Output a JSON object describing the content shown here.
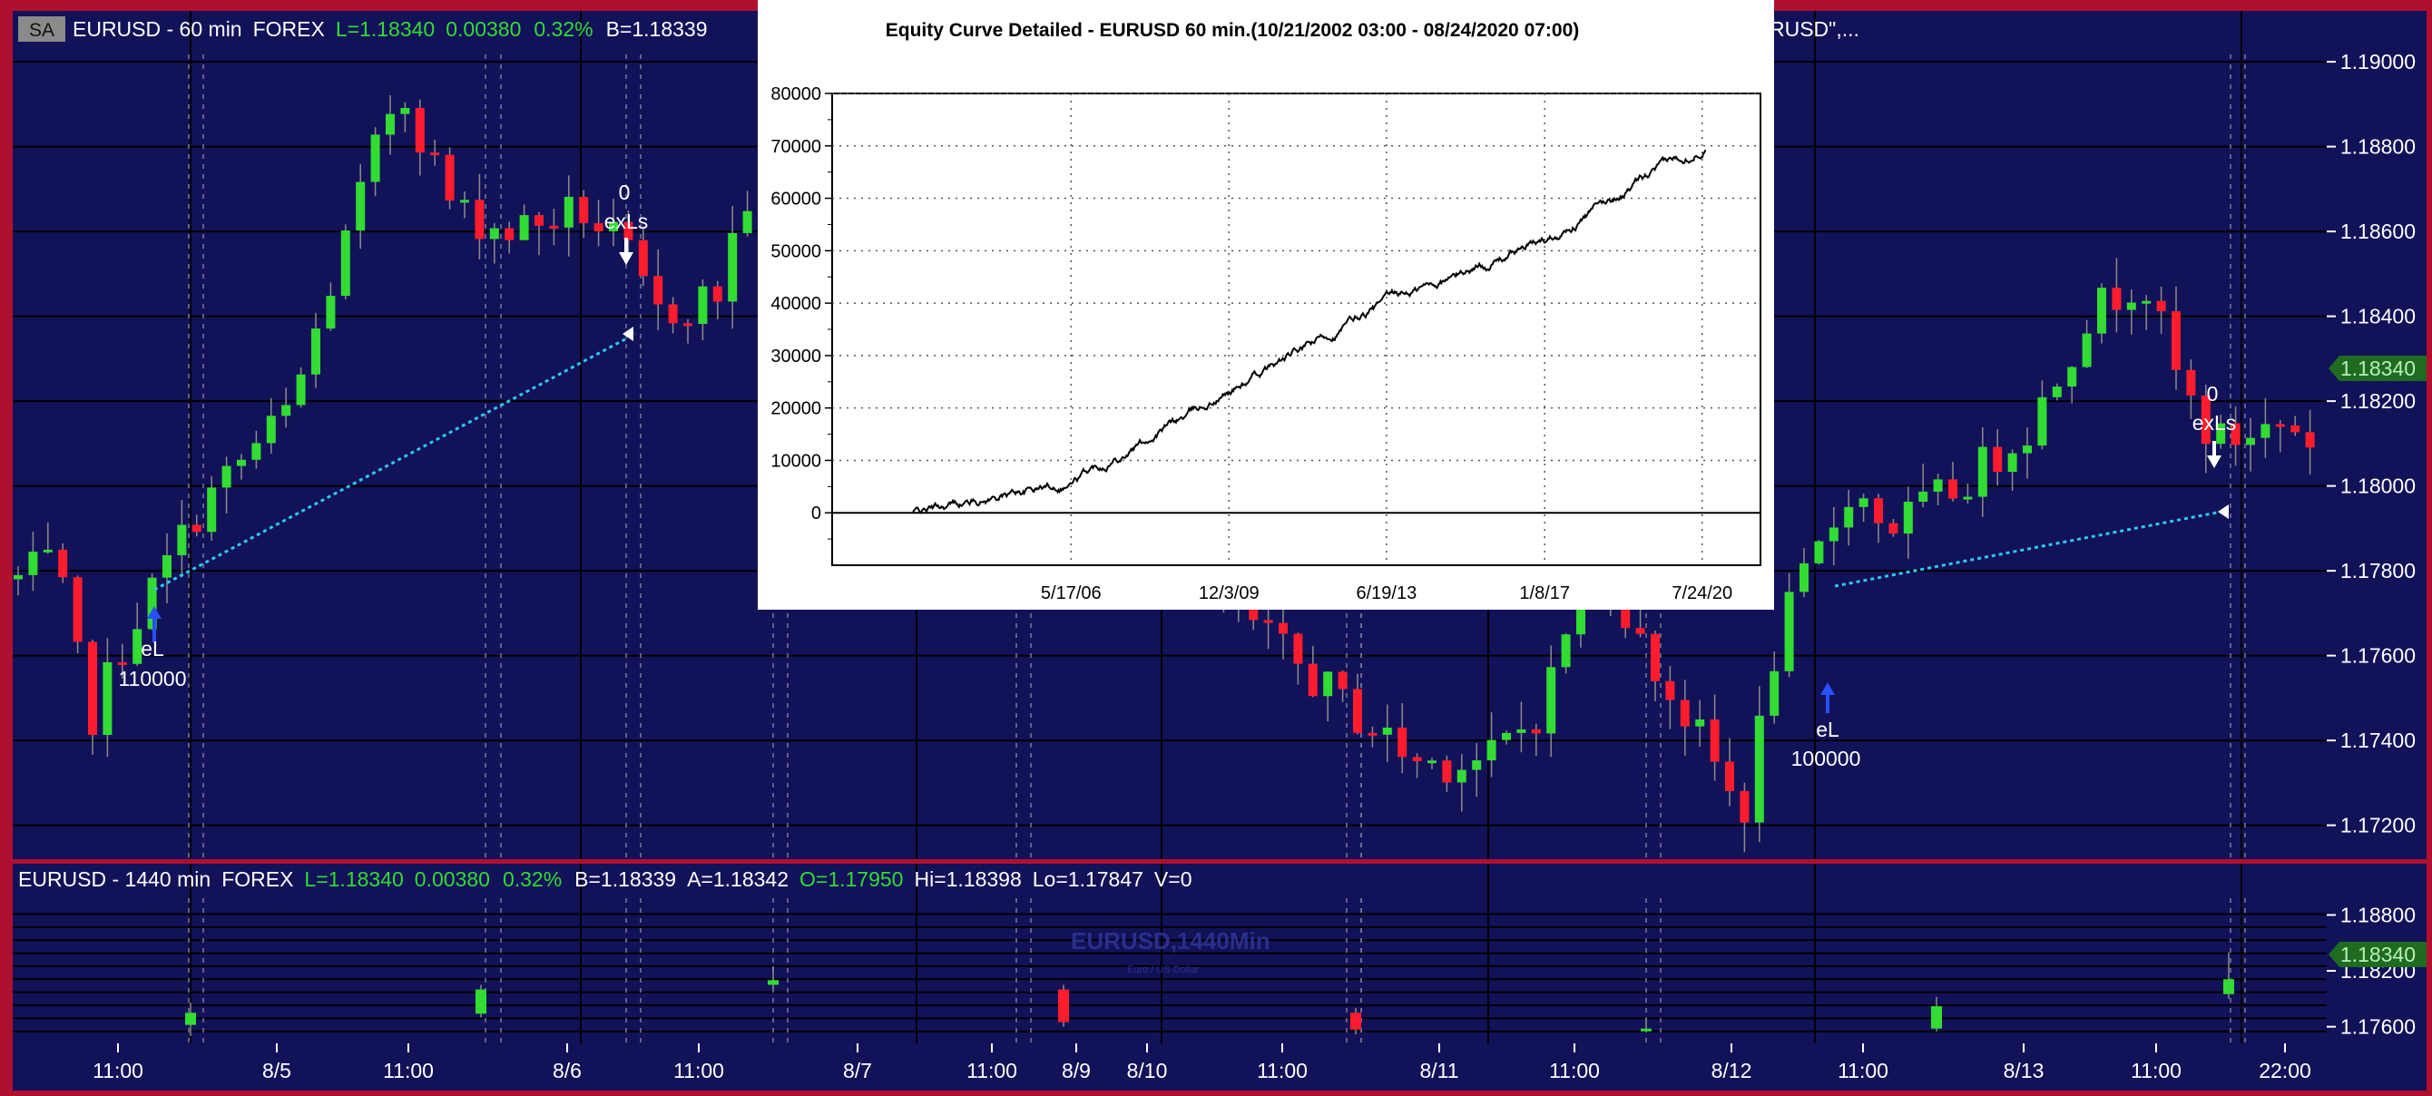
{
  "colors": {
    "background": "#121259",
    "frame": "#b01030",
    "grid": "#000000",
    "up_candle": "#32dc32",
    "down_candle": "#ff1c2c",
    "white": "#ffffff",
    "green_text": "#32dc32",
    "price_badge": "#1f6b1f",
    "trade_line": "#2ec9ee",
    "arrow_blue": "#2850ff"
  },
  "top_pane": {
    "badge": "SA",
    "symbol": "EURUSD - 60 min",
    "market": "FOREX",
    "last": "L=1.18340",
    "change": "0.00380",
    "change_pct": "0.32%",
    "bid": "B=1.18339",
    "hidden_tail": "RUSD\",...",
    "price_axis": [
      "1.19000",
      "1.18800",
      "1.18600",
      "1.18400",
      "1.18200",
      "1.18000",
      "1.17800",
      "1.17600",
      "1.17400",
      "1.17200"
    ],
    "current_price": "1.18340"
  },
  "bottom_pane": {
    "symbol": "EURUSD - 1440 min",
    "market": "FOREX",
    "last": "L=1.18340",
    "change": "0.00380",
    "change_pct": "0.32%",
    "bid": "B=1.18339",
    "ask": "A=1.18342",
    "open": "O=1.17950",
    "high": "Hi=1.18398",
    "low": "Lo=1.17847",
    "volume": "V=0",
    "watermark": "EURUSD,1440Min",
    "watermark_sub": "Euro / US Dollar",
    "price_axis": [
      "1.18800",
      "1.18200",
      "1.17600"
    ],
    "price_axis_partial": "1.18400",
    "current_price": "1.18340"
  },
  "time_axis": [
    "11:00",
    "8/5",
    "11:00",
    "8/6",
    "11:00",
    "8/7",
    "11:00",
    "8/9",
    "8/10",
    "11:00",
    "8/11",
    "11:00",
    "8/12",
    "11:00",
    "8/13",
    "11:00",
    "22:00"
  ],
  "trade_labels": {
    "entry1_name": "eL",
    "entry1_qty": "110000",
    "exit1_qty": "0",
    "exit1_name": "exLs",
    "entry2_name": "eL",
    "entry2_qty": "100000",
    "exit2_qty": "0",
    "exit2_name": "exLs"
  },
  "equity_window": {
    "title": "Equity Curve Detailed - EURUSD 60 min.(10/21/2002 03:00 - 08/24/2020 07:00)"
  },
  "chart_data": [
    {
      "type": "line",
      "title": "Equity Curve Detailed - EURUSD 60 min.(10/21/2002 03:00 - 08/24/2020 07:00)",
      "xlabel": "",
      "ylabel": "",
      "x_ticks": [
        "5/17/06",
        "12/3/09",
        "6/19/13",
        "1/8/17",
        "7/24/20"
      ],
      "y_ticks": [
        0,
        10000,
        20000,
        30000,
        40000,
        50000,
        60000,
        70000,
        80000
      ],
      "ylim": [
        -10000,
        80000
      ],
      "xlim": [
        "10/21/2002",
        "08/24/2020"
      ],
      "grid": true,
      "series": [
        {
          "x": [
            "10/21/2002",
            "05/17/2006",
            "12/03/2009",
            "06/19/2013",
            "01/08/2017",
            "07/24/2020",
            "08/24/2020"
          ],
          "values": [
            0,
            6000,
            23000,
            40000,
            52000,
            70000,
            71000
          ]
        }
      ]
    },
    {
      "type": "candlestick",
      "title": "EURUSD - 60 min",
      "ylim": [
        1.1712,
        1.1912
      ],
      "y_ticks": [
        1.172,
        1.174,
        1.176,
        1.178,
        1.18,
        1.182,
        1.184,
        1.186,
        1.188,
        1.19
      ],
      "current_price": 1.1834
    },
    {
      "type": "candlestick",
      "title": "EURUSD - 1440 min",
      "ylim": [
        1.1747,
        1.1898
      ],
      "y_ticks": [
        1.176,
        1.182,
        1.188
      ],
      "current_price": 1.1834
    }
  ]
}
